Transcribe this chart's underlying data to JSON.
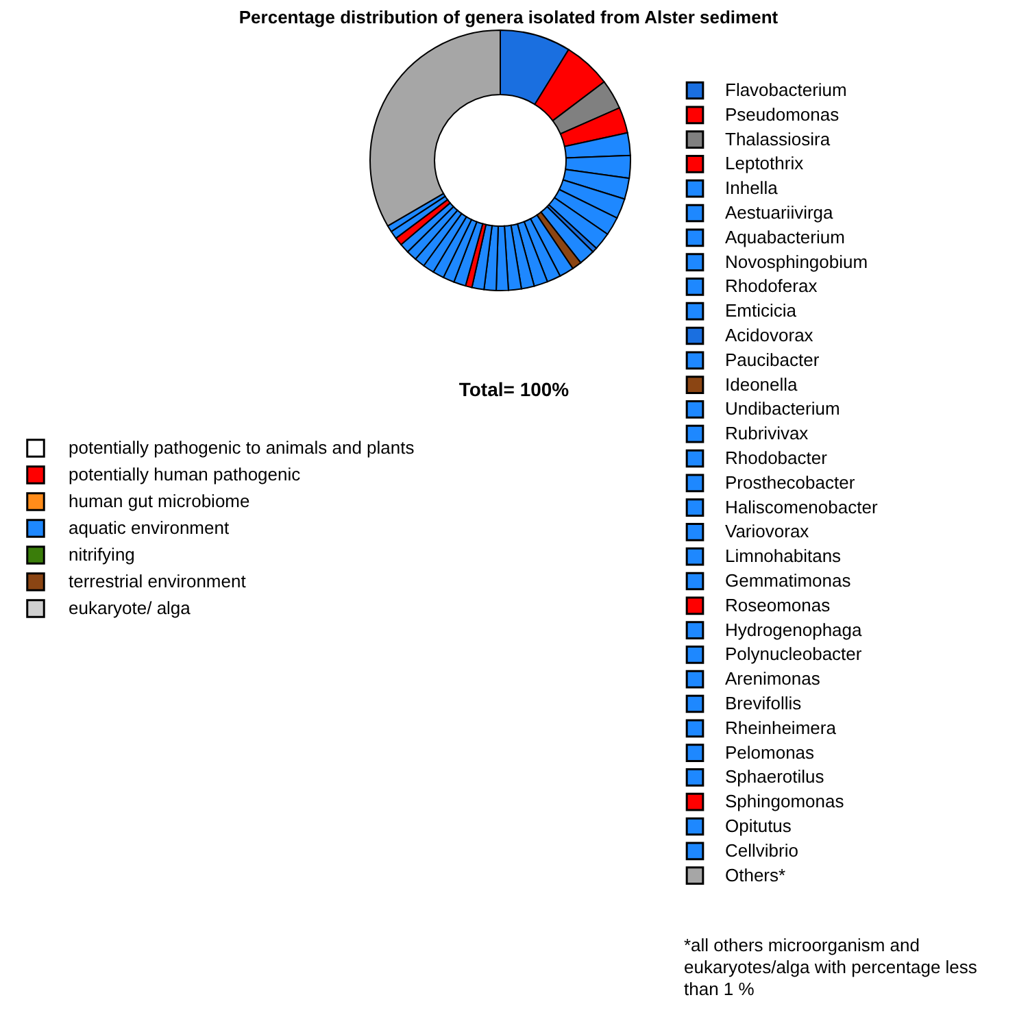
{
  "chart_data": [
    {
      "type": "donut",
      "title": "Percentage distribution of genera isolated from Alster sediment",
      "categories": [
        "Flavobacterium",
        "Pseudomonas",
        "Thalassiosira",
        "Leptothrix",
        "Inhella",
        "Aestuariivirga",
        "Aquabacterium",
        "Novosphingobium",
        "Rhodoferax",
        "Emticicia",
        "Acidovorax",
        "Paucibacter",
        "Ideonella",
        "Undibacterium",
        "Rubrivivax",
        "Rhodobacter",
        "Prosthecobacter",
        "Haliscomenobacter",
        "Variovorax",
        "Limnohabitans",
        "Gemmatimonas",
        "Roseomonas",
        "Hydrogenophaga",
        "Polynucleobacter",
        "Arenimonas",
        "Brevifollis",
        "Rheinheimera",
        "Pelomonas",
        "Sphaerotilus",
        "Sphingomonas",
        "Opitutus",
        "Cellvibrio",
        "Others*"
      ],
      "values": [
        8.8,
        5.9,
        3.7,
        3.2,
        2.8,
        2.8,
        2.6,
        2.5,
        2.3,
        2.2,
        0.6,
        2.0,
        1.2,
        1.8,
        1.7,
        1.7,
        1.6,
        1.6,
        1.5,
        1.5,
        1.5,
        0.8,
        1.5,
        1.4,
        1.4,
        1.4,
        1.3,
        1.3,
        1.2,
        1.0,
        1.0,
        0.8,
        33.4
      ],
      "colors": [
        "#1a6fe0",
        "#ff0000",
        "#808080",
        "#ff0000",
        "#1e88ff",
        "#1e88ff",
        "#1e88ff",
        "#1e88ff",
        "#1e88ff",
        "#1e88ff",
        "#1a6fe0",
        "#1e88ff",
        "#8b4513",
        "#1e88ff",
        "#1e88ff",
        "#1e88ff",
        "#1e88ff",
        "#1e88ff",
        "#1e88ff",
        "#1e88ff",
        "#1e88ff",
        "#ff0000",
        "#1e88ff",
        "#1e88ff",
        "#1e88ff",
        "#1e88ff",
        "#1e88ff",
        "#1e88ff",
        "#1e88ff",
        "#ff0000",
        "#1e88ff",
        "#1e88ff",
        "#a6a6a6"
      ],
      "legend": "right",
      "annotations": [
        "Total= 100%",
        "*all others microorganism and eukaryotes/alga with percentage less than 1 %"
      ]
    },
    {
      "type": "other",
      "categories": [
        "potentially pathogenic to animals and plants",
        "potentially human pathogenic",
        "human gut microbiome",
        "aquatic environment",
        "nitrifying",
        "terrestrial environment",
        "eukaryote/ alga"
      ],
      "colors": [
        "#ffffff",
        "#ff0000",
        "#ff8c1a",
        "#1e88ff",
        "#3a7d0a",
        "#8b4513",
        "#d0d0d0"
      ]
    }
  ]
}
